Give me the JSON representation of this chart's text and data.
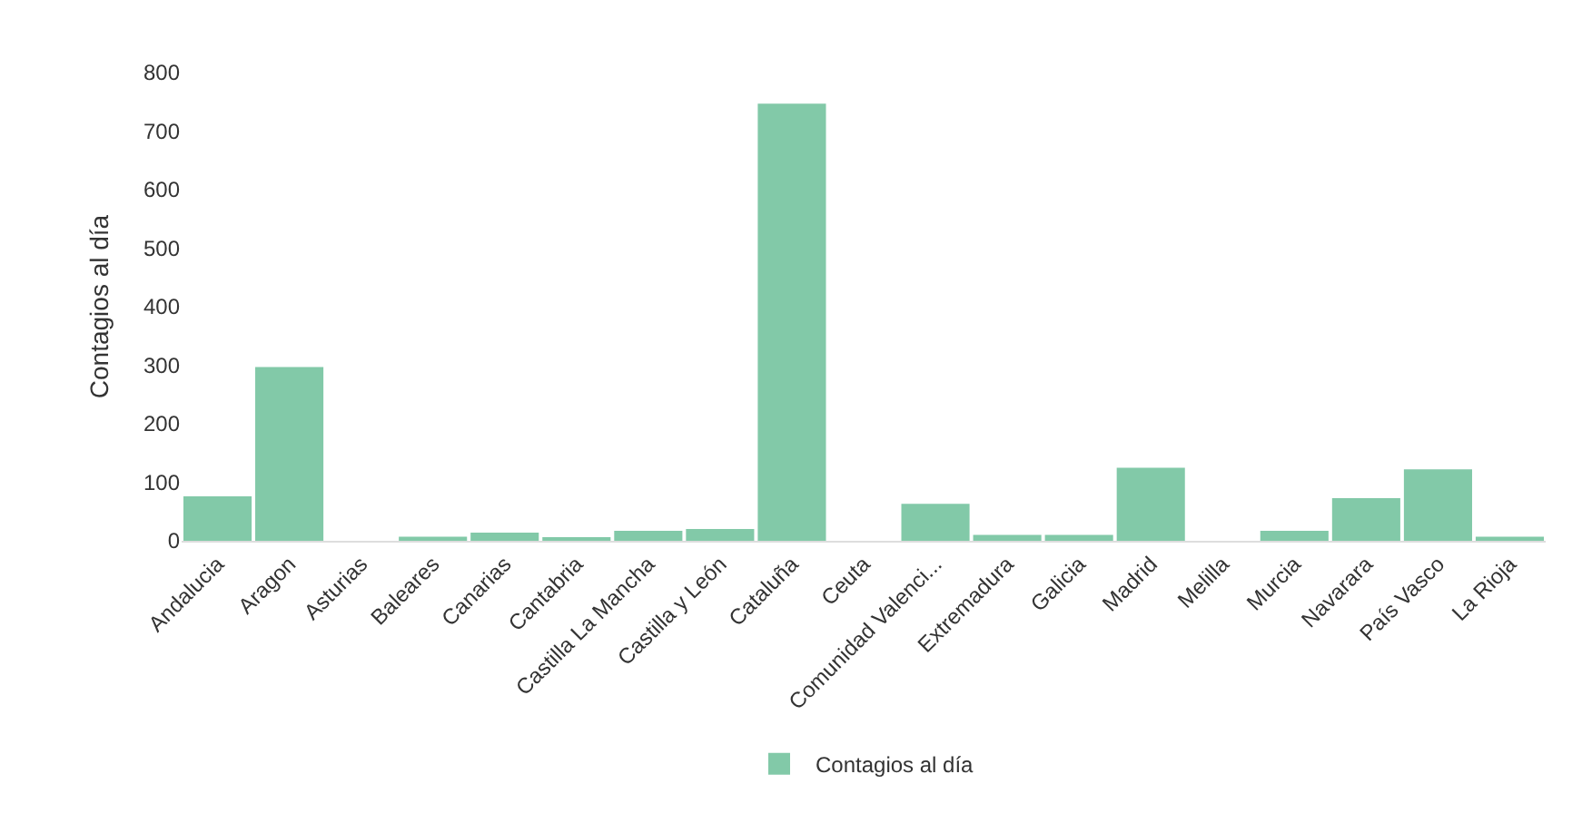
{
  "chart_data": {
    "type": "bar",
    "ylabel": "Contagios al día",
    "categories": [
      "Andalucia",
      "Aragon",
      "Asturias",
      "Baleares",
      "Canarias",
      "Cantabria",
      "Castilla La Mancha",
      "Castilla y León",
      "Cataluña",
      "Ceuta",
      "Comunidad Valenci...",
      "Extremadura",
      "Galicia",
      "Madrid",
      "Melilla",
      "Murcia",
      "Navarara",
      "País Vasco",
      "La Rioja"
    ],
    "series": [
      {
        "name": "Contagios al día",
        "color": "#82c9a8",
        "values": [
          76,
          297,
          0,
          7,
          14,
          5,
          17,
          20,
          747,
          0,
          63,
          10,
          10,
          125,
          0,
          17,
          73,
          122,
          7
        ]
      }
    ],
    "ylim": [
      0,
      800
    ],
    "yticks": [
      0,
      100,
      200,
      300,
      400,
      500,
      600,
      700,
      800
    ],
    "legend": "bottom"
  }
}
